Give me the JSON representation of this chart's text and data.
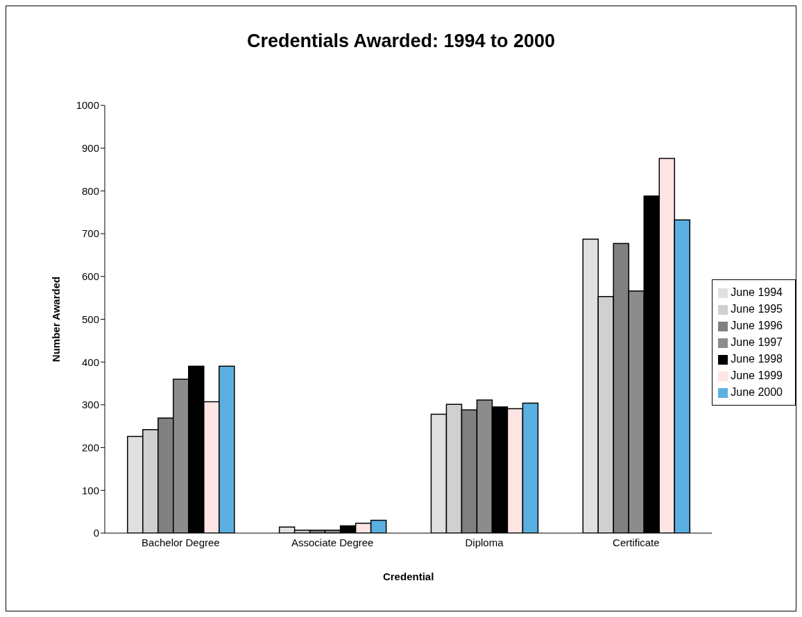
{
  "chart_data": {
    "type": "bar",
    "title": "Credentials Awarded: 1994 to 2000",
    "xlabel": "Credential",
    "ylabel": "Number Awarded",
    "categories": [
      "Bachelor Degree",
      "Associate Degree",
      "Diploma",
      "Certificate"
    ],
    "series": [
      {
        "name": "June 1994",
        "color": "#e0e0e0",
        "values": [
          226,
          14,
          278,
          687
        ]
      },
      {
        "name": "June 1995",
        "color": "#d0d0d0",
        "values": [
          242,
          7,
          301,
          553
        ]
      },
      {
        "name": "June 1996",
        "color": "#808080",
        "values": [
          269,
          7,
          288,
          677
        ]
      },
      {
        "name": "June 1997",
        "color": "#8c8c8c",
        "values": [
          360,
          7,
          311,
          566
        ]
      },
      {
        "name": "June 1998",
        "color": "#000000",
        "values": [
          390,
          17,
          295,
          788
        ]
      },
      {
        "name": "June 1999",
        "color": "#ffe4e4",
        "values": [
          307,
          23,
          291,
          876
        ]
      },
      {
        "name": "June 2000",
        "color": "#5ab0e0",
        "values": [
          390,
          30,
          304,
          732
        ]
      }
    ],
    "ylim": [
      0,
      1000
    ],
    "yticks": [
      0,
      100,
      200,
      300,
      400,
      500,
      600,
      700,
      800,
      900,
      1000
    ],
    "grid": false,
    "legend": "right"
  }
}
